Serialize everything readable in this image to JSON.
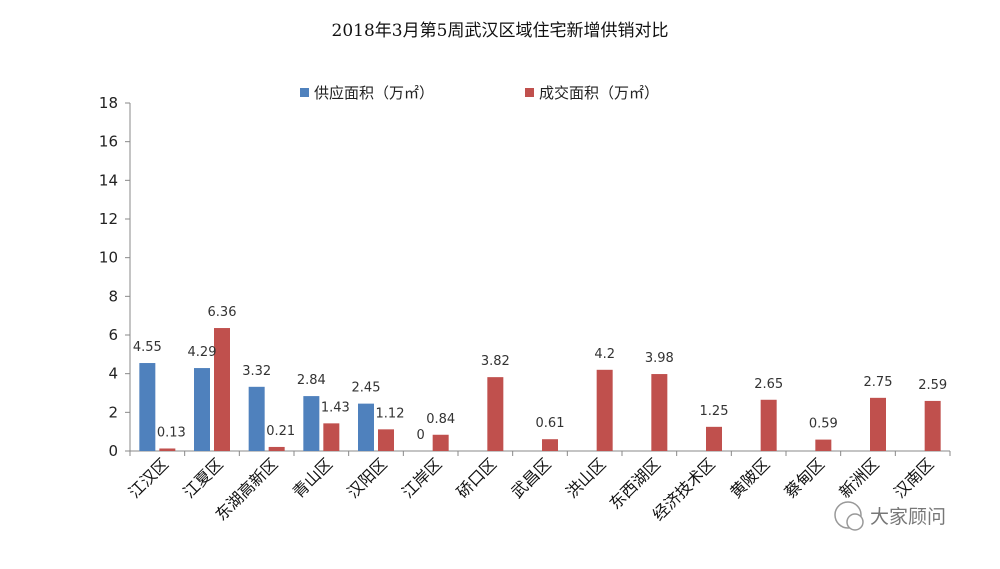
{
  "chart_data": {
    "type": "bar",
    "title": "2018年3月第5周武汉区域住宅新增供销对比",
    "categories": [
      "江汉区",
      "江夏区",
      "东湖高新区",
      "青山区",
      "汉阳区",
      "江岸区",
      "硚口区",
      "武昌区",
      "洪山区",
      "东西湖区",
      "经济技术区",
      "黄陂区",
      "蔡甸区",
      "新洲区",
      "汉南区"
    ],
    "series": [
      {
        "name": "供应面积（万㎡）",
        "color": "#4F81BD",
        "values": [
          4.55,
          4.29,
          3.32,
          2.84,
          2.45,
          0,
          null,
          null,
          null,
          null,
          null,
          null,
          null,
          null,
          null
        ],
        "labels": [
          "4.55",
          "4.29",
          "3.32",
          "2.84",
          "2.45",
          "0",
          "",
          "",
          "",
          "",
          "",
          "",
          "",
          "",
          ""
        ]
      },
      {
        "name": "成交面积（万㎡）",
        "color": "#C0504D",
        "values": [
          0.13,
          6.36,
          0.21,
          1.43,
          1.12,
          0.84,
          3.82,
          0.61,
          4.2,
          3.98,
          1.25,
          2.65,
          0.59,
          2.75,
          2.59
        ],
        "labels": [
          "0.13",
          "6.36",
          "0.21",
          "1.43",
          "1.12",
          "0.84",
          "3.82",
          "0.61",
          "4.2",
          "3.98",
          "1.25",
          "2.65",
          "0.59",
          "2.75",
          "2.59"
        ]
      }
    ],
    "ylim": [
      0,
      18
    ],
    "yticks": [
      0,
      2,
      4,
      6,
      8,
      10,
      12,
      14,
      16,
      18
    ],
    "xlabel": "",
    "ylabel": "",
    "grid": false,
    "legend_position": "top-center"
  },
  "watermark": {
    "text": "大家顾问",
    "icon": "wechat-icon"
  }
}
